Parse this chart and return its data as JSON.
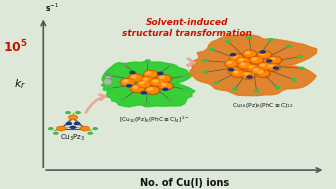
{
  "background_color": "#dde8d8",
  "xlabel": "No. of Cu(I) ions",
  "power_label": "10^5",
  "red_title_line1": "Solvent-induced",
  "red_title_line2": "structural transformation",
  "label_cu3pz3": "Cu$_3$Pz$_3$",
  "label_middle": "[Cu$_{10}$(Pz)$_6$(PhC$\\equiv$C)$_4$]$^{2-}$",
  "label_right": "Cu$_{16}$(Pz)$_6$(PhC$\\equiv$C)$_{12}$",
  "arrow_color": "#e8a898",
  "green_blob_color": "#22cc22",
  "orange_blob_color": "#e07818",
  "axis_color": "#555555",
  "red_text_color": "#cc1100",
  "black_text_color": "#111111",
  "cu_color": "#ff8800",
  "cu_edge_color": "#cc5500",
  "n_color": "#223377",
  "c_color": "#888888",
  "green_atom_color": "#22bb22",
  "bond_color": "#555555"
}
